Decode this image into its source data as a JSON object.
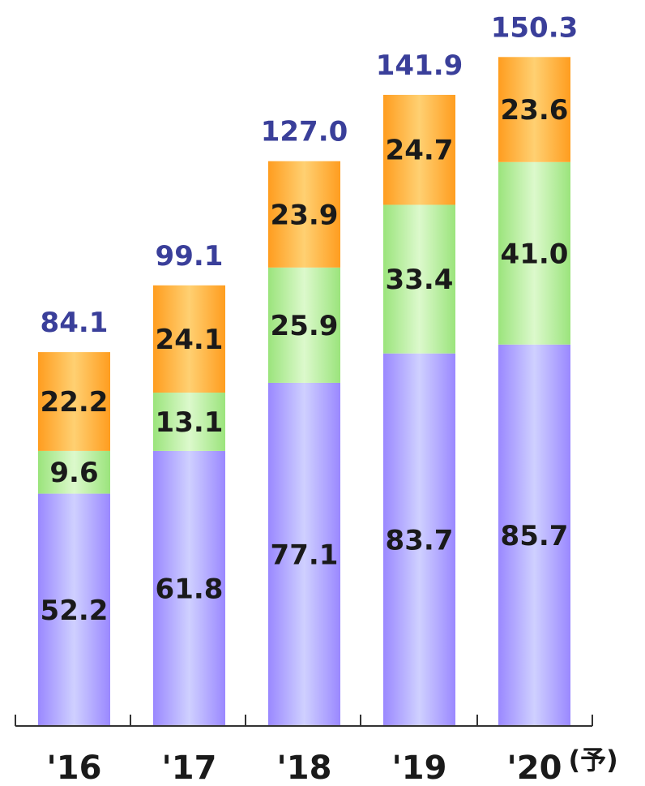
{
  "chart_data": {
    "type": "bar",
    "stacked": true,
    "categories": [
      "'16",
      "'17",
      "'18",
      "'19",
      "'20"
    ],
    "category_suffix": [
      "",
      "",
      "",
      "",
      "(予)"
    ],
    "series": [
      {
        "values": [
          52.2,
          61.8,
          77.1,
          83.7,
          85.7
        ],
        "color": "#b8b0ff"
      },
      {
        "values": [
          9.6,
          13.1,
          25.9,
          33.4,
          41.0
        ],
        "color": "#b6ee9c"
      },
      {
        "values": [
          22.2,
          24.1,
          23.9,
          24.7,
          23.6
        ],
        "color": "#ffb84a"
      }
    ],
    "totals": [
      84.1,
      99.1,
      127.0,
      141.9,
      150.3
    ],
    "grid": false,
    "legend": "none"
  }
}
